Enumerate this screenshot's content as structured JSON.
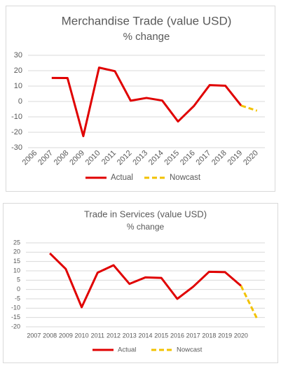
{
  "chart_data": [
    {
      "type": "line",
      "title": "Merchandise Trade (value USD)",
      "subtitle": "% change",
      "categories": [
        "2006",
        "2007",
        "2008",
        "2009",
        "2010",
        "2011",
        "2012",
        "2013",
        "2014",
        "2015",
        "2016",
        "2017",
        "2018",
        "2019",
        "2020"
      ],
      "series": [
        {
          "name": "Actual",
          "color": "#e00000",
          "dash": false,
          "values": [
            null,
            15.3,
            15.2,
            -22.5,
            22,
            19.7,
            0.5,
            2.3,
            0.6,
            -13,
            -3,
            10.6,
            10.2,
            -2.7,
            null
          ]
        },
        {
          "name": "Nowcast",
          "color": "#f2c200",
          "dash": true,
          "values": [
            null,
            null,
            null,
            null,
            null,
            null,
            null,
            null,
            null,
            null,
            null,
            null,
            null,
            -2.7,
            -6
          ]
        }
      ],
      "ylim": [
        -30,
        30
      ],
      "yticks": [
        30,
        20,
        10,
        0,
        -10,
        -20,
        -30
      ],
      "grid": true,
      "legend": "bottom"
    },
    {
      "type": "line",
      "title": "Trade in Services (value USD)",
      "subtitle": "% change",
      "categories": [
        "2007",
        "2008",
        "2009",
        "2010",
        "2011",
        "2012",
        "2013",
        "2014",
        "2015",
        "2016",
        "2017",
        "2018",
        "2019",
        "2020",
        null
      ],
      "series": [
        {
          "name": "Actual",
          "color": "#e00000",
          "dash": false,
          "values": [
            null,
            19.4,
            11,
            -9.5,
            9,
            13,
            3,
            6.5,
            6.2,
            -5,
            1.5,
            9.5,
            9.3,
            2,
            null
          ]
        },
        {
          "name": "Nowcast",
          "color": "#f2c200",
          "dash": true,
          "values": [
            null,
            null,
            null,
            null,
            null,
            null,
            null,
            null,
            null,
            null,
            null,
            null,
            null,
            2,
            -15.5
          ]
        }
      ],
      "ylim": [
        -20,
        25
      ],
      "yticks": [
        25,
        20,
        15,
        10,
        5,
        0,
        -5,
        -10,
        -15,
        -20
      ],
      "grid": true,
      "legend": "bottom"
    }
  ]
}
